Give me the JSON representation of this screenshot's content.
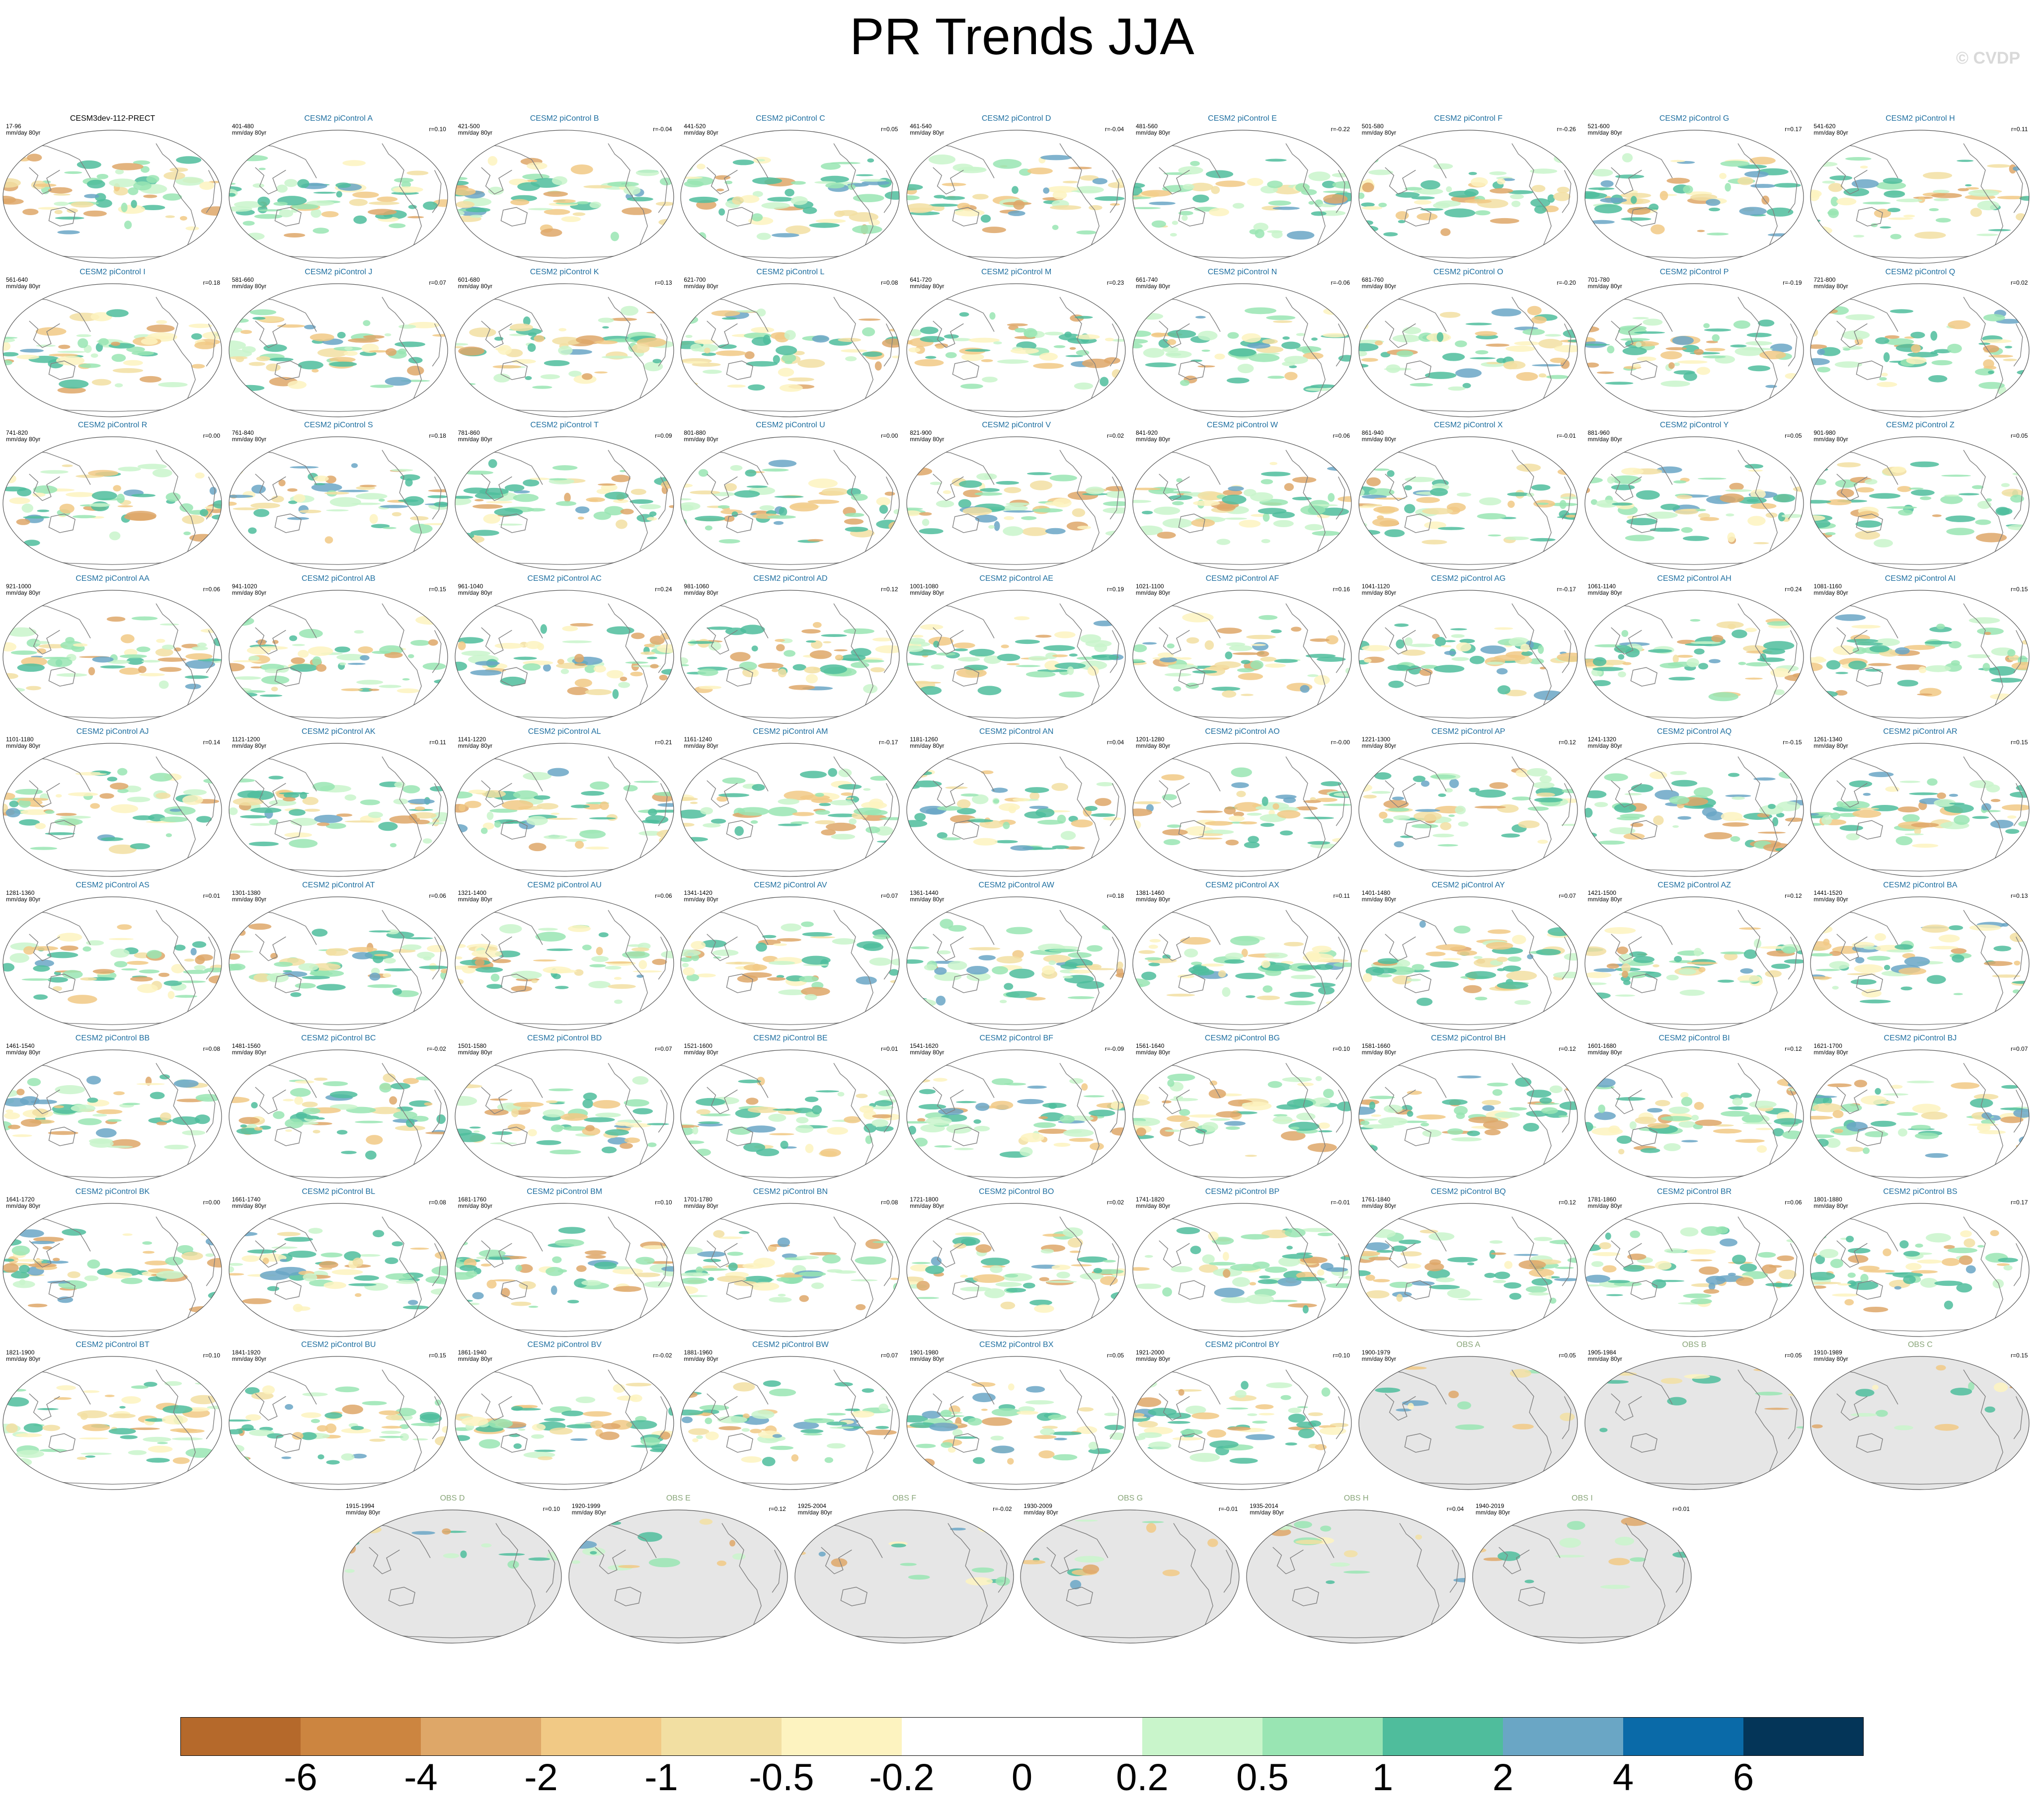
{
  "title": "PR Trends JJA",
  "copyright": "© CVDP",
  "units": "mm/day 80yr",
  "colors": {
    "model_title": "#1f6fa0",
    "obs_title": "#8aa67a",
    "land_obs": "#e6e6e6",
    "coast": "#7f7f7f"
  },
  "chart_data": {
    "type": "heatmap",
    "description_key": "grid of global precipitation trend maps",
    "panels": [
      {
        "title": "CESM3dev-112-PRECT",
        "period": "17-96",
        "r": "",
        "kind": "main"
      },
      {
        "title": "CESM2 piControl A",
        "period": "401-480",
        "r": "r=0.10",
        "kind": "model"
      },
      {
        "title": "CESM2 piControl B",
        "period": "421-500",
        "r": "r=-0.04",
        "kind": "model"
      },
      {
        "title": "CESM2 piControl C",
        "period": "441-520",
        "r": "r=0.05",
        "kind": "model"
      },
      {
        "title": "CESM2 piControl D",
        "period": "461-540",
        "r": "r=-0.04",
        "kind": "model"
      },
      {
        "title": "CESM2 piControl E",
        "period": "481-560",
        "r": "r=-0.22",
        "kind": "model"
      },
      {
        "title": "CESM2 piControl F",
        "period": "501-580",
        "r": "r=-0.26",
        "kind": "model"
      },
      {
        "title": "CESM2 piControl G",
        "period": "521-600",
        "r": "r=0.17",
        "kind": "model"
      },
      {
        "title": "CESM2 piControl H",
        "period": "541-620",
        "r": "r=0.11",
        "kind": "model"
      },
      {
        "title": "CESM2 piControl I",
        "period": "561-640",
        "r": "r=0.18",
        "kind": "model"
      },
      {
        "title": "CESM2 piControl J",
        "period": "581-660",
        "r": "r=0.07",
        "kind": "model"
      },
      {
        "title": "CESM2 piControl K",
        "period": "601-680",
        "r": "r=0.13",
        "kind": "model"
      },
      {
        "title": "CESM2 piControl L",
        "period": "621-700",
        "r": "r=0.08",
        "kind": "model"
      },
      {
        "title": "CESM2 piControl M",
        "period": "641-720",
        "r": "r=0.23",
        "kind": "model"
      },
      {
        "title": "CESM2 piControl N",
        "period": "661-740",
        "r": "r=-0.06",
        "kind": "model"
      },
      {
        "title": "CESM2 piControl O",
        "period": "681-760",
        "r": "r=-0.20",
        "kind": "model"
      },
      {
        "title": "CESM2 piControl P",
        "period": "701-780",
        "r": "r=-0.19",
        "kind": "model"
      },
      {
        "title": "CESM2 piControl Q",
        "period": "721-800",
        "r": "r=0.02",
        "kind": "model"
      },
      {
        "title": "CESM2 piControl R",
        "period": "741-820",
        "r": "r=0.00",
        "kind": "model"
      },
      {
        "title": "CESM2 piControl S",
        "period": "761-840",
        "r": "r=0.18",
        "kind": "model"
      },
      {
        "title": "CESM2 piControl T",
        "period": "781-860",
        "r": "r=0.09",
        "kind": "model"
      },
      {
        "title": "CESM2 piControl U",
        "period": "801-880",
        "r": "r=0.00",
        "kind": "model"
      },
      {
        "title": "CESM2 piControl V",
        "period": "821-900",
        "r": "r=0.02",
        "kind": "model"
      },
      {
        "title": "CESM2 piControl W",
        "period": "841-920",
        "r": "r=0.06",
        "kind": "model"
      },
      {
        "title": "CESM2 piControl X",
        "period": "861-940",
        "r": "r=-0.01",
        "kind": "model"
      },
      {
        "title": "CESM2 piControl Y",
        "period": "881-960",
        "r": "r=0.05",
        "kind": "model"
      },
      {
        "title": "CESM2 piControl Z",
        "period": "901-980",
        "r": "r=0.05",
        "kind": "model"
      },
      {
        "title": "CESM2 piControl AA",
        "period": "921-1000",
        "r": "r=0.06",
        "kind": "model"
      },
      {
        "title": "CESM2 piControl AB",
        "period": "941-1020",
        "r": "r=0.15",
        "kind": "model"
      },
      {
        "title": "CESM2 piControl AC",
        "period": "961-1040",
        "r": "r=0.24",
        "kind": "model"
      },
      {
        "title": "CESM2 piControl AD",
        "period": "981-1060",
        "r": "r=0.12",
        "kind": "model"
      },
      {
        "title": "CESM2 piControl AE",
        "period": "1001-1080",
        "r": "r=0.19",
        "kind": "model"
      },
      {
        "title": "CESM2 piControl AF",
        "period": "1021-1100",
        "r": "r=0.16",
        "kind": "model"
      },
      {
        "title": "CESM2 piControl AG",
        "period": "1041-1120",
        "r": "r=-0.17",
        "kind": "model"
      },
      {
        "title": "CESM2 piControl AH",
        "period": "1061-1140",
        "r": "r=0.24",
        "kind": "model"
      },
      {
        "title": "CESM2 piControl AI",
        "period": "1081-1160",
        "r": "r=0.15",
        "kind": "model"
      },
      {
        "title": "CESM2 piControl AJ",
        "period": "1101-1180",
        "r": "r=0.14",
        "kind": "model"
      },
      {
        "title": "CESM2 piControl AK",
        "period": "1121-1200",
        "r": "r=0.11",
        "kind": "model"
      },
      {
        "title": "CESM2 piControl AL",
        "period": "1141-1220",
        "r": "r=0.21",
        "kind": "model"
      },
      {
        "title": "CESM2 piControl AM",
        "period": "1161-1240",
        "r": "r=-0.17",
        "kind": "model"
      },
      {
        "title": "CESM2 piControl AN",
        "period": "1181-1260",
        "r": "r=0.04",
        "kind": "model"
      },
      {
        "title": "CESM2 piControl AO",
        "period": "1201-1280",
        "r": "r=-0.00",
        "kind": "model"
      },
      {
        "title": "CESM2 piControl AP",
        "period": "1221-1300",
        "r": "r=0.12",
        "kind": "model"
      },
      {
        "title": "CESM2 piControl AQ",
        "period": "1241-1320",
        "r": "r=-0.15",
        "kind": "model"
      },
      {
        "title": "CESM2 piControl AR",
        "period": "1261-1340",
        "r": "r=0.15",
        "kind": "model"
      },
      {
        "title": "CESM2 piControl AS",
        "period": "1281-1360",
        "r": "r=0.01",
        "kind": "model"
      },
      {
        "title": "CESM2 piControl AT",
        "period": "1301-1380",
        "r": "r=0.06",
        "kind": "model"
      },
      {
        "title": "CESM2 piControl AU",
        "period": "1321-1400",
        "r": "r=0.06",
        "kind": "model"
      },
      {
        "title": "CESM2 piControl AV",
        "period": "1341-1420",
        "r": "r=0.07",
        "kind": "model"
      },
      {
        "title": "CESM2 piControl AW",
        "period": "1361-1440",
        "r": "r=0.18",
        "kind": "model"
      },
      {
        "title": "CESM2 piControl AX",
        "period": "1381-1460",
        "r": "r=0.11",
        "kind": "model"
      },
      {
        "title": "CESM2 piControl AY",
        "period": "1401-1480",
        "r": "r=0.07",
        "kind": "model"
      },
      {
        "title": "CESM2 piControl AZ",
        "period": "1421-1500",
        "r": "r=0.12",
        "kind": "model"
      },
      {
        "title": "CESM2 piControl BA",
        "period": "1441-1520",
        "r": "r=0.13",
        "kind": "model"
      },
      {
        "title": "CESM2 piControl BB",
        "period": "1461-1540",
        "r": "r=0.08",
        "kind": "model"
      },
      {
        "title": "CESM2 piControl BC",
        "period": "1481-1560",
        "r": "r=-0.02",
        "kind": "model"
      },
      {
        "title": "CESM2 piControl BD",
        "period": "1501-1580",
        "r": "r=0.07",
        "kind": "model"
      },
      {
        "title": "CESM2 piControl BE",
        "period": "1521-1600",
        "r": "r=0.01",
        "kind": "model"
      },
      {
        "title": "CESM2 piControl BF",
        "period": "1541-1620",
        "r": "r=-0.09",
        "kind": "model"
      },
      {
        "title": "CESM2 piControl BG",
        "period": "1561-1640",
        "r": "r=0.10",
        "kind": "model"
      },
      {
        "title": "CESM2 piControl BH",
        "period": "1581-1660",
        "r": "r=0.12",
        "kind": "model"
      },
      {
        "title": "CESM2 piControl BI",
        "period": "1601-1680",
        "r": "r=0.12",
        "kind": "model"
      },
      {
        "title": "CESM2 piControl BJ",
        "period": "1621-1700",
        "r": "r=0.07",
        "kind": "model"
      },
      {
        "title": "CESM2 piControl BK",
        "period": "1641-1720",
        "r": "r=0.00",
        "kind": "model"
      },
      {
        "title": "CESM2 piControl BL",
        "period": "1661-1740",
        "r": "r=0.08",
        "kind": "model"
      },
      {
        "title": "CESM2 piControl BM",
        "period": "1681-1760",
        "r": "r=0.10",
        "kind": "model"
      },
      {
        "title": "CESM2 piControl BN",
        "period": "1701-1780",
        "r": "r=0.08",
        "kind": "model"
      },
      {
        "title": "CESM2 piControl BO",
        "period": "1721-1800",
        "r": "r=0.02",
        "kind": "model"
      },
      {
        "title": "CESM2 piControl BP",
        "period": "1741-1820",
        "r": "r=-0.01",
        "kind": "model"
      },
      {
        "title": "CESM2 piControl BQ",
        "period": "1761-1840",
        "r": "r=0.12",
        "kind": "model"
      },
      {
        "title": "CESM2 piControl BR",
        "period": "1781-1860",
        "r": "r=0.06",
        "kind": "model"
      },
      {
        "title": "CESM2 piControl BS",
        "period": "1801-1880",
        "r": "r=0.17",
        "kind": "model"
      },
      {
        "title": "CESM2 piControl BT",
        "period": "1821-1900",
        "r": "r=0.10",
        "kind": "model"
      },
      {
        "title": "CESM2 piControl BU",
        "period": "1841-1920",
        "r": "r=0.15",
        "kind": "model"
      },
      {
        "title": "CESM2 piControl BV",
        "period": "1861-1940",
        "r": "r=-0.02",
        "kind": "model"
      },
      {
        "title": "CESM2 piControl BW",
        "period": "1881-1960",
        "r": "r=0.07",
        "kind": "model"
      },
      {
        "title": "CESM2 piControl BX",
        "period": "1901-1980",
        "r": "r=0.05",
        "kind": "model"
      },
      {
        "title": "CESM2 piControl BY",
        "period": "1921-2000",
        "r": "r=0.10",
        "kind": "model"
      },
      {
        "title": "OBS A",
        "period": "1900-1979",
        "r": "r=0.05",
        "kind": "obs"
      },
      {
        "title": "OBS B",
        "period": "1905-1984",
        "r": "r=0.05",
        "kind": "obs"
      },
      {
        "title": "OBS C",
        "period": "1910-1989",
        "r": "r=0.15",
        "kind": "obs"
      },
      {
        "title": "OBS D",
        "period": "1915-1994",
        "r": "r=0.10",
        "kind": "obs"
      },
      {
        "title": "OBS E",
        "period": "1920-1999",
        "r": "r=0.12",
        "kind": "obs"
      },
      {
        "title": "OBS F",
        "period": "1925-2004",
        "r": "r=-0.02",
        "kind": "obs"
      },
      {
        "title": "OBS G",
        "period": "1930-2009",
        "r": "r=-0.01",
        "kind": "obs"
      },
      {
        "title": "OBS H",
        "period": "1935-2014",
        "r": "r=0.04",
        "kind": "obs"
      },
      {
        "title": "OBS I",
        "period": "1940-2019",
        "r": "r=0.01",
        "kind": "obs"
      }
    ],
    "colorbar": {
      "labels": [
        "-6",
        "-4",
        "-2",
        "-1",
        "-0.5",
        "-0.2",
        "0",
        "0.2",
        "0.5",
        "1",
        "2",
        "4",
        "6"
      ],
      "colors": [
        "#b5692b",
        "#cc8540",
        "#dea768",
        "#f1c985",
        "#f2dfa2",
        "#fdf3c0",
        "#ffffff",
        "#ffffff",
        "#c9f5cb",
        "#99e5b3",
        "#4fbd9c",
        "#6aa6c5",
        "#0a6aa8",
        "#043558"
      ]
    }
  }
}
